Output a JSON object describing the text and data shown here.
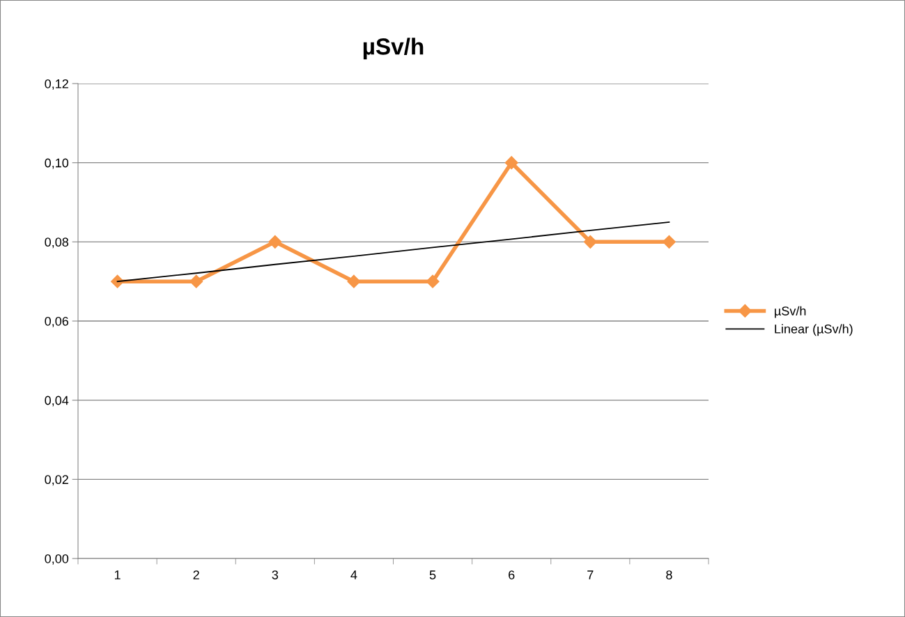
{
  "chart_data": {
    "type": "line",
    "title": "µSv/h",
    "categories": [
      "1",
      "2",
      "3",
      "4",
      "5",
      "6",
      "7",
      "8"
    ],
    "series": [
      {
        "name": "µSv/h",
        "color": "#f79646",
        "marker": "diamond",
        "values": [
          0.07,
          0.07,
          0.08,
          0.07,
          0.07,
          0.1,
          0.08,
          0.08
        ]
      },
      {
        "name": "Linear (µSv/h)",
        "color": "#000000",
        "marker": "none",
        "values": [
          0.07,
          0.0721,
          0.0743,
          0.0764,
          0.0786,
          0.0807,
          0.0829,
          0.085
        ]
      }
    ],
    "ylim": [
      0,
      0.12
    ],
    "yticks": [
      {
        "value": 0,
        "label": "0,00"
      },
      {
        "value": 0.02,
        "label": "0,02"
      },
      {
        "value": 0.04,
        "label": "0,04"
      },
      {
        "value": 0.06,
        "label": "0,06"
      },
      {
        "value": 0.08,
        "label": "0,08"
      },
      {
        "value": 0.1,
        "label": "0,10"
      },
      {
        "value": 0.12,
        "label": "0,12"
      }
    ],
    "grid": "y",
    "legend": "right"
  }
}
